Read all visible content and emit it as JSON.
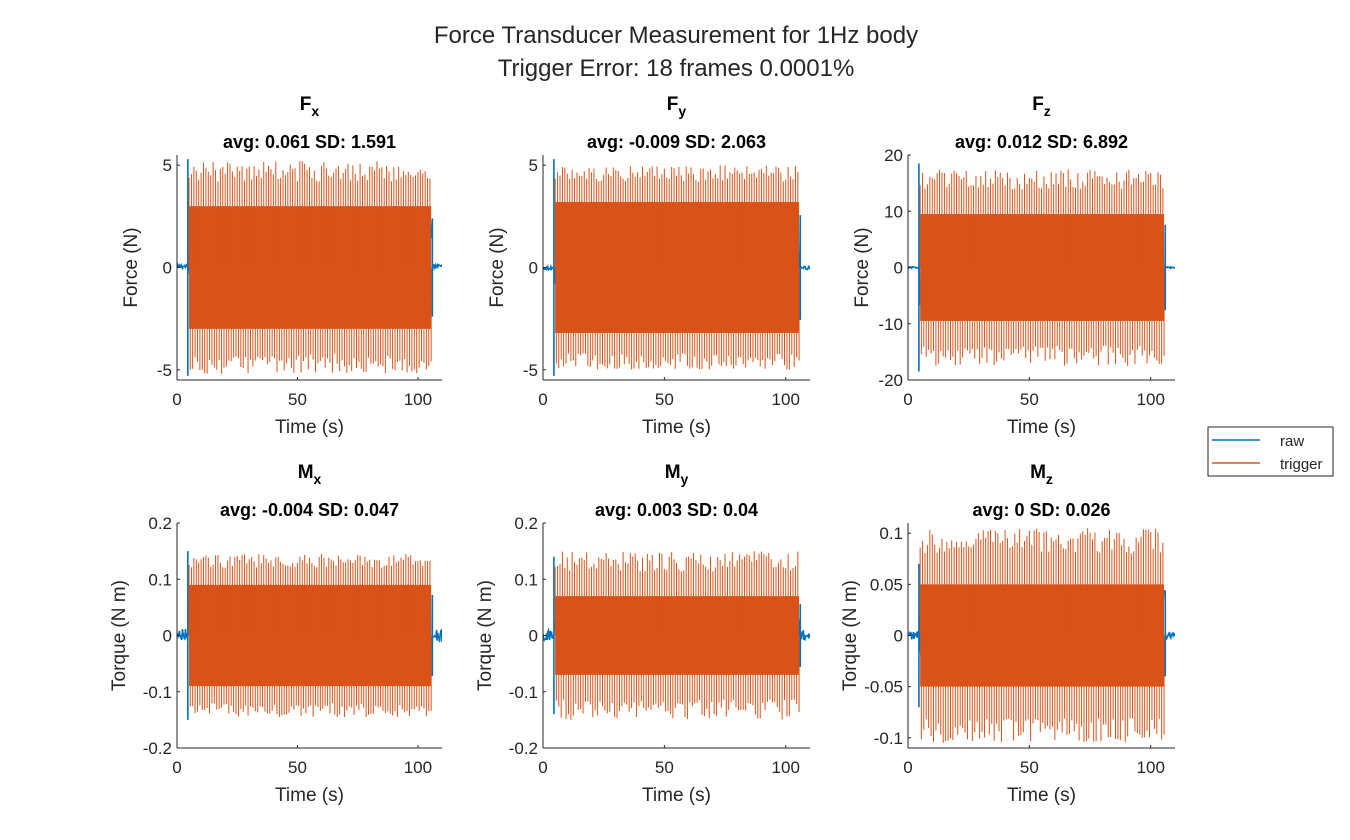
{
  "figure": {
    "title_line1": "Force Transducer Measurement for 1Hz body",
    "title_line2": "Trigger Error: 18 frames 0.0001%"
  },
  "legend": {
    "entries": [
      "raw",
      "trigger"
    ]
  },
  "colors": {
    "raw": "#0072BD",
    "trigger": "#D95319",
    "axis": "#262626"
  },
  "chart_data": [
    {
      "type": "line",
      "title_main": "F",
      "title_sub": "x",
      "stats": "avg: 0.061 SD: 1.591",
      "xlabel": "Time (s)",
      "ylabel": "Force (N)",
      "xlim": [
        0,
        110
      ],
      "ylim": [
        -5.5,
        5.5
      ],
      "xticks": [
        0,
        50,
        100
      ],
      "yticks": [
        -5,
        0,
        5
      ],
      "yticklabels": [
        "-5",
        "0",
        "5"
      ],
      "series": [
        {
          "name": "raw",
          "t_start": 4.5,
          "t_end": 106,
          "base_range": [
            -0.05,
            0.15
          ],
          "amplitude": 5.3
        },
        {
          "name": "trigger",
          "t_start": 5,
          "t_end": 105.5,
          "core_amplitude": 3.0,
          "peak_amplitude": 5.2
        }
      ]
    },
    {
      "type": "line",
      "title_main": "F",
      "title_sub": "y",
      "stats": "avg: -0.009 SD: 2.063",
      "xlabel": "Time (s)",
      "ylabel": "Force (N)",
      "xlim": [
        0,
        110
      ],
      "ylim": [
        -5.5,
        5.5
      ],
      "xticks": [
        0,
        50,
        100
      ],
      "yticks": [
        -5,
        0,
        5
      ],
      "yticklabels": [
        "-5",
        "0",
        "5"
      ],
      "series": [
        {
          "name": "raw",
          "t_start": 4.5,
          "t_end": 106,
          "base_range": [
            -0.1,
            0.05
          ],
          "amplitude": 5.3
        },
        {
          "name": "trigger",
          "t_start": 5,
          "t_end": 105.5,
          "core_amplitude": 3.2,
          "peak_amplitude": 5.0
        }
      ]
    },
    {
      "type": "line",
      "title_main": "F",
      "title_sub": "z",
      "stats": "avg: 0.012 SD: 6.892",
      "xlabel": "Time (s)",
      "ylabel": "Force (N)",
      "xlim": [
        0,
        110
      ],
      "ylim": [
        -20,
        20
      ],
      "xticks": [
        0,
        50,
        100
      ],
      "yticks": [
        -20,
        -10,
        0,
        10,
        20
      ],
      "yticklabels": [
        "-20",
        "-10",
        "0",
        "10",
        "20"
      ],
      "series": [
        {
          "name": "raw",
          "t_start": 4.5,
          "t_end": 106,
          "base_range": [
            -0.1,
            0.1
          ],
          "amplitude": 18.5
        },
        {
          "name": "trigger",
          "t_start": 5,
          "t_end": 105.5,
          "core_amplitude": 9.5,
          "peak_amplitude": 17.5
        }
      ]
    },
    {
      "type": "line",
      "title_main": "M",
      "title_sub": "x",
      "stats": "avg: -0.004 SD: 0.047",
      "xlabel": "Time (s)",
      "ylabel": "Torque (N m)",
      "xlim": [
        0,
        110
      ],
      "ylim": [
        -0.2,
        0.2
      ],
      "xticks": [
        0,
        50,
        100
      ],
      "yticks": [
        -0.2,
        -0.1,
        0,
        0.1,
        0.2
      ],
      "yticklabels": [
        "-0.2",
        "-0.1",
        "0",
        "0.1",
        "0.2"
      ],
      "series": [
        {
          "name": "raw",
          "t_start": 4.5,
          "t_end": 106,
          "base_range": [
            -0.012,
            0.012
          ],
          "amplitude": 0.15
        },
        {
          "name": "trigger",
          "t_start": 5,
          "t_end": 105.5,
          "core_amplitude": 0.09,
          "peak_amplitude": 0.145
        }
      ]
    },
    {
      "type": "line",
      "title_main": "M",
      "title_sub": "y",
      "stats": "avg: 0.003 SD: 0.04",
      "xlabel": "Time (s)",
      "ylabel": "Torque (N m)",
      "xlim": [
        0,
        110
      ],
      "ylim": [
        -0.2,
        0.2
      ],
      "xticks": [
        0,
        50,
        100
      ],
      "yticks": [
        -0.2,
        -0.1,
        0,
        0.1,
        0.2
      ],
      "yticklabels": [
        "-0.2",
        "-0.1",
        "0",
        "0.1",
        "0.2"
      ],
      "series": [
        {
          "name": "raw",
          "t_start": 4.5,
          "t_end": 106,
          "base_range": [
            -0.01,
            0.01
          ],
          "amplitude": 0.14
        },
        {
          "name": "trigger",
          "t_start": 5,
          "t_end": 105.5,
          "core_amplitude": 0.07,
          "peak_amplitude": 0.15
        }
      ]
    },
    {
      "type": "line",
      "title_main": "M",
      "title_sub": "z",
      "stats": "avg: 0 SD: 0.026",
      "xlabel": "Time (s)",
      "ylabel": "Torque (N m)",
      "xlim": [
        0,
        110
      ],
      "ylim": [
        -0.11,
        0.11
      ],
      "xticks": [
        0,
        50,
        100
      ],
      "yticks": [
        -0.1,
        -0.05,
        0,
        0.05,
        0.1
      ],
      "yticklabels": [
        "-0.1",
        "-0.05",
        "0",
        "0.05",
        "0.1"
      ],
      "series": [
        {
          "name": "raw",
          "t_start": 4.5,
          "t_end": 106,
          "base_range": [
            -0.004,
            0.004
          ],
          "amplitude": 0.07
        },
        {
          "name": "trigger",
          "t_start": 5,
          "t_end": 105.5,
          "core_amplitude": 0.05,
          "peak_amplitude": 0.105
        }
      ]
    }
  ]
}
